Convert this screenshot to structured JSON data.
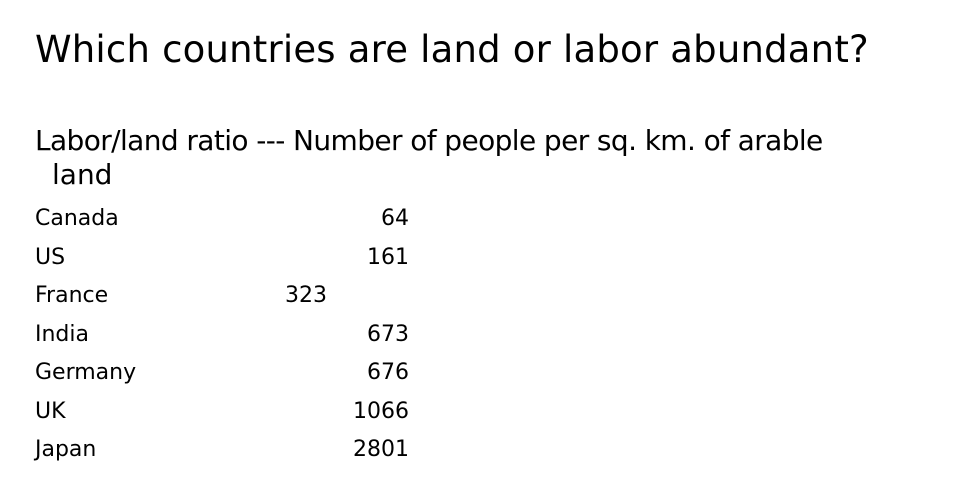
{
  "slide": {
    "title": "Which countries are land or labor abundant?",
    "subtitle_line1": "Labor/land ratio --- Number of people per sq. km. of arable",
    "subtitle_line2": "land"
  },
  "table": {
    "rows": [
      {
        "country": "Canada",
        "value": "64"
      },
      {
        "country": "US",
        "value": "161"
      },
      {
        "country": "France",
        "value": "323"
      },
      {
        "country": "India",
        "value": "673"
      },
      {
        "country": "Germany",
        "value": "676"
      },
      {
        "country": "UK",
        "value": "1066"
      },
      {
        "country": "Japan",
        "value": "2801"
      }
    ]
  }
}
